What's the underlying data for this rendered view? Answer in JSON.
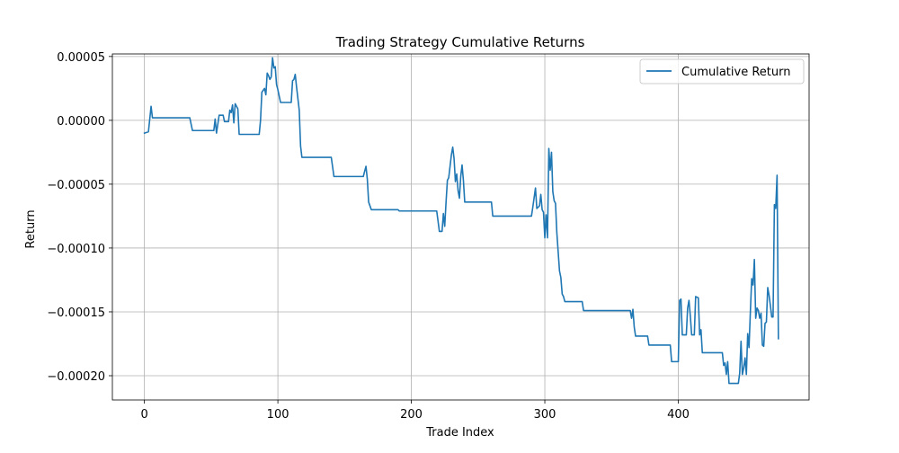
{
  "chart_data": {
    "type": "line",
    "title": "Trading Strategy Cumulative Returns",
    "xlabel": "Trade Index",
    "ylabel": "Return",
    "xlim": [
      -24,
      498
    ],
    "ylim": [
      -0.000219,
      5.2e-05
    ],
    "xticks": [
      0,
      100,
      200,
      300,
      400
    ],
    "xtick_labels": [
      "0",
      "100",
      "200",
      "300",
      "400"
    ],
    "yticks": [
      5e-05,
      0.0,
      -5e-05,
      -0.0001,
      -0.00015,
      -0.0002
    ],
    "ytick_labels": [
      "0.00005",
      "0.00000",
      "−0.00005",
      "−0.00010",
      "−0.00015",
      "−0.00020"
    ],
    "grid": true,
    "legend_position": "top-right",
    "series": [
      {
        "name": "Cumulative Return",
        "color": "#1f77b4",
        "points": [
          [
            0,
            -1e-05
          ],
          [
            3,
            -9e-06
          ],
          [
            5,
            1.1e-05
          ],
          [
            6,
            2e-06
          ],
          [
            34,
            2e-06
          ],
          [
            36,
            -8e-06
          ],
          [
            52,
            -8e-06
          ],
          [
            53,
            1e-06
          ],
          [
            54,
            -1e-05
          ],
          [
            56,
            4e-06
          ],
          [
            59,
            4e-06
          ],
          [
            60,
            -1e-06
          ],
          [
            63,
            -1e-06
          ],
          [
            64,
            8e-06
          ],
          [
            65,
            6e-06
          ],
          [
            66,
            1.2e-05
          ],
          [
            67,
            -2e-06
          ],
          [
            68,
            1.3e-05
          ],
          [
            70,
            9e-06
          ],
          [
            71,
            -1.1e-05
          ],
          [
            86,
            -1.1e-05
          ],
          [
            87,
            0.0
          ],
          [
            88,
            2.2e-05
          ],
          [
            90,
            2.5e-05
          ],
          [
            91,
            2e-05
          ],
          [
            92,
            3.7e-05
          ],
          [
            93,
            3.5e-05
          ],
          [
            94,
            3.2e-05
          ],
          [
            95,
            3.4e-05
          ],
          [
            96,
            4.9e-05
          ],
          [
            97,
            4.1e-05
          ],
          [
            98,
            4.2e-05
          ],
          [
            99,
            2.8e-05
          ],
          [
            100,
            2.4e-05
          ],
          [
            102,
            1.4e-05
          ],
          [
            110,
            1.4e-05
          ],
          [
            111,
            3.1e-05
          ],
          [
            112,
            3.2e-05
          ],
          [
            113,
            3.6e-05
          ],
          [
            114,
            2.6e-05
          ],
          [
            116,
            8e-06
          ],
          [
            117,
            -2e-05
          ],
          [
            118,
            -2.9e-05
          ],
          [
            140,
            -2.9e-05
          ],
          [
            142,
            -4.4e-05
          ],
          [
            164,
            -4.4e-05
          ],
          [
            165,
            -4e-05
          ],
          [
            166,
            -3.6e-05
          ],
          [
            167,
            -4.6e-05
          ],
          [
            168,
            -6.4e-05
          ],
          [
            170,
            -7e-05
          ],
          [
            190,
            -7e-05
          ],
          [
            191,
            -7.1e-05
          ],
          [
            219,
            -7.1e-05
          ],
          [
            221,
            -8.7e-05
          ],
          [
            223,
            -8.7e-05
          ],
          [
            224,
            -7.3e-05
          ],
          [
            225,
            -8.3e-05
          ],
          [
            226,
            -6.4e-05
          ],
          [
            227,
            -4.7e-05
          ],
          [
            228,
            -4.5e-05
          ],
          [
            229,
            -3.6e-05
          ],
          [
            230,
            -2.7e-05
          ],
          [
            231,
            -2.1e-05
          ],
          [
            232,
            -3e-05
          ],
          [
            233,
            -4.8e-05
          ],
          [
            234,
            -4.2e-05
          ],
          [
            235,
            -5.5e-05
          ],
          [
            236,
            -6.1e-05
          ],
          [
            237,
            -4.4e-05
          ],
          [
            238,
            -3.5e-05
          ],
          [
            239,
            -4.7e-05
          ],
          [
            240,
            -6.4e-05
          ],
          [
            260,
            -6.4e-05
          ],
          [
            261,
            -7.5e-05
          ],
          [
            290,
            -7.5e-05
          ],
          [
            291,
            -6.8e-05
          ],
          [
            293,
            -5.3e-05
          ],
          [
            294,
            -6.9e-05
          ],
          [
            296,
            -6.7e-05
          ],
          [
            297,
            -5.8e-05
          ],
          [
            298,
            -7e-05
          ],
          [
            299,
            -7.2e-05
          ],
          [
            300,
            -9.2e-05
          ],
          [
            301,
            -7.4e-05
          ],
          [
            302,
            -9.2e-05
          ],
          [
            303,
            -2.2e-05
          ],
          [
            304,
            -3.9e-05
          ],
          [
            305,
            -2.5e-05
          ],
          [
            306,
            -5.6e-05
          ],
          [
            307,
            -6.3e-05
          ],
          [
            308,
            -6.5e-05
          ],
          [
            309,
            -8.8e-05
          ],
          [
            311,
            -0.000118
          ],
          [
            312,
            -0.000123
          ],
          [
            313,
            -0.000136
          ],
          [
            314,
            -0.000138
          ],
          [
            315,
            -0.000142
          ],
          [
            328,
            -0.000142
          ],
          [
            329,
            -0.000149
          ],
          [
            364,
            -0.000149
          ],
          [
            365,
            -0.000155
          ],
          [
            366,
            -0.000148
          ],
          [
            367,
            -0.000162
          ],
          [
            368,
            -0.000169
          ],
          [
            377,
            -0.000169
          ],
          [
            378,
            -0.000176
          ],
          [
            394,
            -0.000176
          ],
          [
            395,
            -0.000189
          ],
          [
            400,
            -0.000189
          ],
          [
            401,
            -0.000141
          ],
          [
            402,
            -0.00014
          ],
          [
            403,
            -0.000168
          ],
          [
            406,
            -0.000168
          ],
          [
            407,
            -0.000147
          ],
          [
            408,
            -0.000141
          ],
          [
            409,
            -0.000153
          ],
          [
            410,
            -0.000168
          ],
          [
            412,
            -0.000168
          ],
          [
            413,
            -0.000138
          ],
          [
            415,
            -0.000139
          ],
          [
            416,
            -0.000168
          ],
          [
            417,
            -0.000164
          ],
          [
            418,
            -0.000182
          ],
          [
            433,
            -0.000182
          ],
          [
            434,
            -0.000192
          ],
          [
            435,
            -0.00019
          ],
          [
            436,
            -0.000199
          ],
          [
            437,
            -0.000189
          ],
          [
            438,
            -0.000206
          ],
          [
            445,
            -0.000206
          ],
          [
            446,
            -0.000198
          ],
          [
            447,
            -0.000173
          ],
          [
            448,
            -0.000199
          ],
          [
            449,
            -0.000194
          ],
          [
            450,
            -0.000186
          ],
          [
            451,
            -0.000199
          ],
          [
            452,
            -0.000167
          ],
          [
            453,
            -0.000178
          ],
          [
            454,
            -0.00015
          ],
          [
            455,
            -0.000124
          ],
          [
            456,
            -0.000129
          ],
          [
            457,
            -0.000109
          ],
          [
            458,
            -0.000155
          ],
          [
            459,
            -0.000147
          ],
          [
            460,
            -0.000149
          ],
          [
            461,
            -0.000155
          ],
          [
            462,
            -0.000151
          ],
          [
            463,
            -0.000176
          ],
          [
            464,
            -0.000177
          ],
          [
            465,
            -0.000159
          ],
          [
            466,
            -0.000158
          ],
          [
            467,
            -0.000131
          ],
          [
            468,
            -0.000137
          ],
          [
            469,
            -0.000145
          ],
          [
            470,
            -0.000154
          ],
          [
            471,
            -0.000154
          ],
          [
            472,
            -6.6e-05
          ],
          [
            473,
            -6.9e-05
          ],
          [
            474,
            -4.3e-05
          ],
          [
            475,
            -0.000171
          ]
        ]
      }
    ]
  }
}
